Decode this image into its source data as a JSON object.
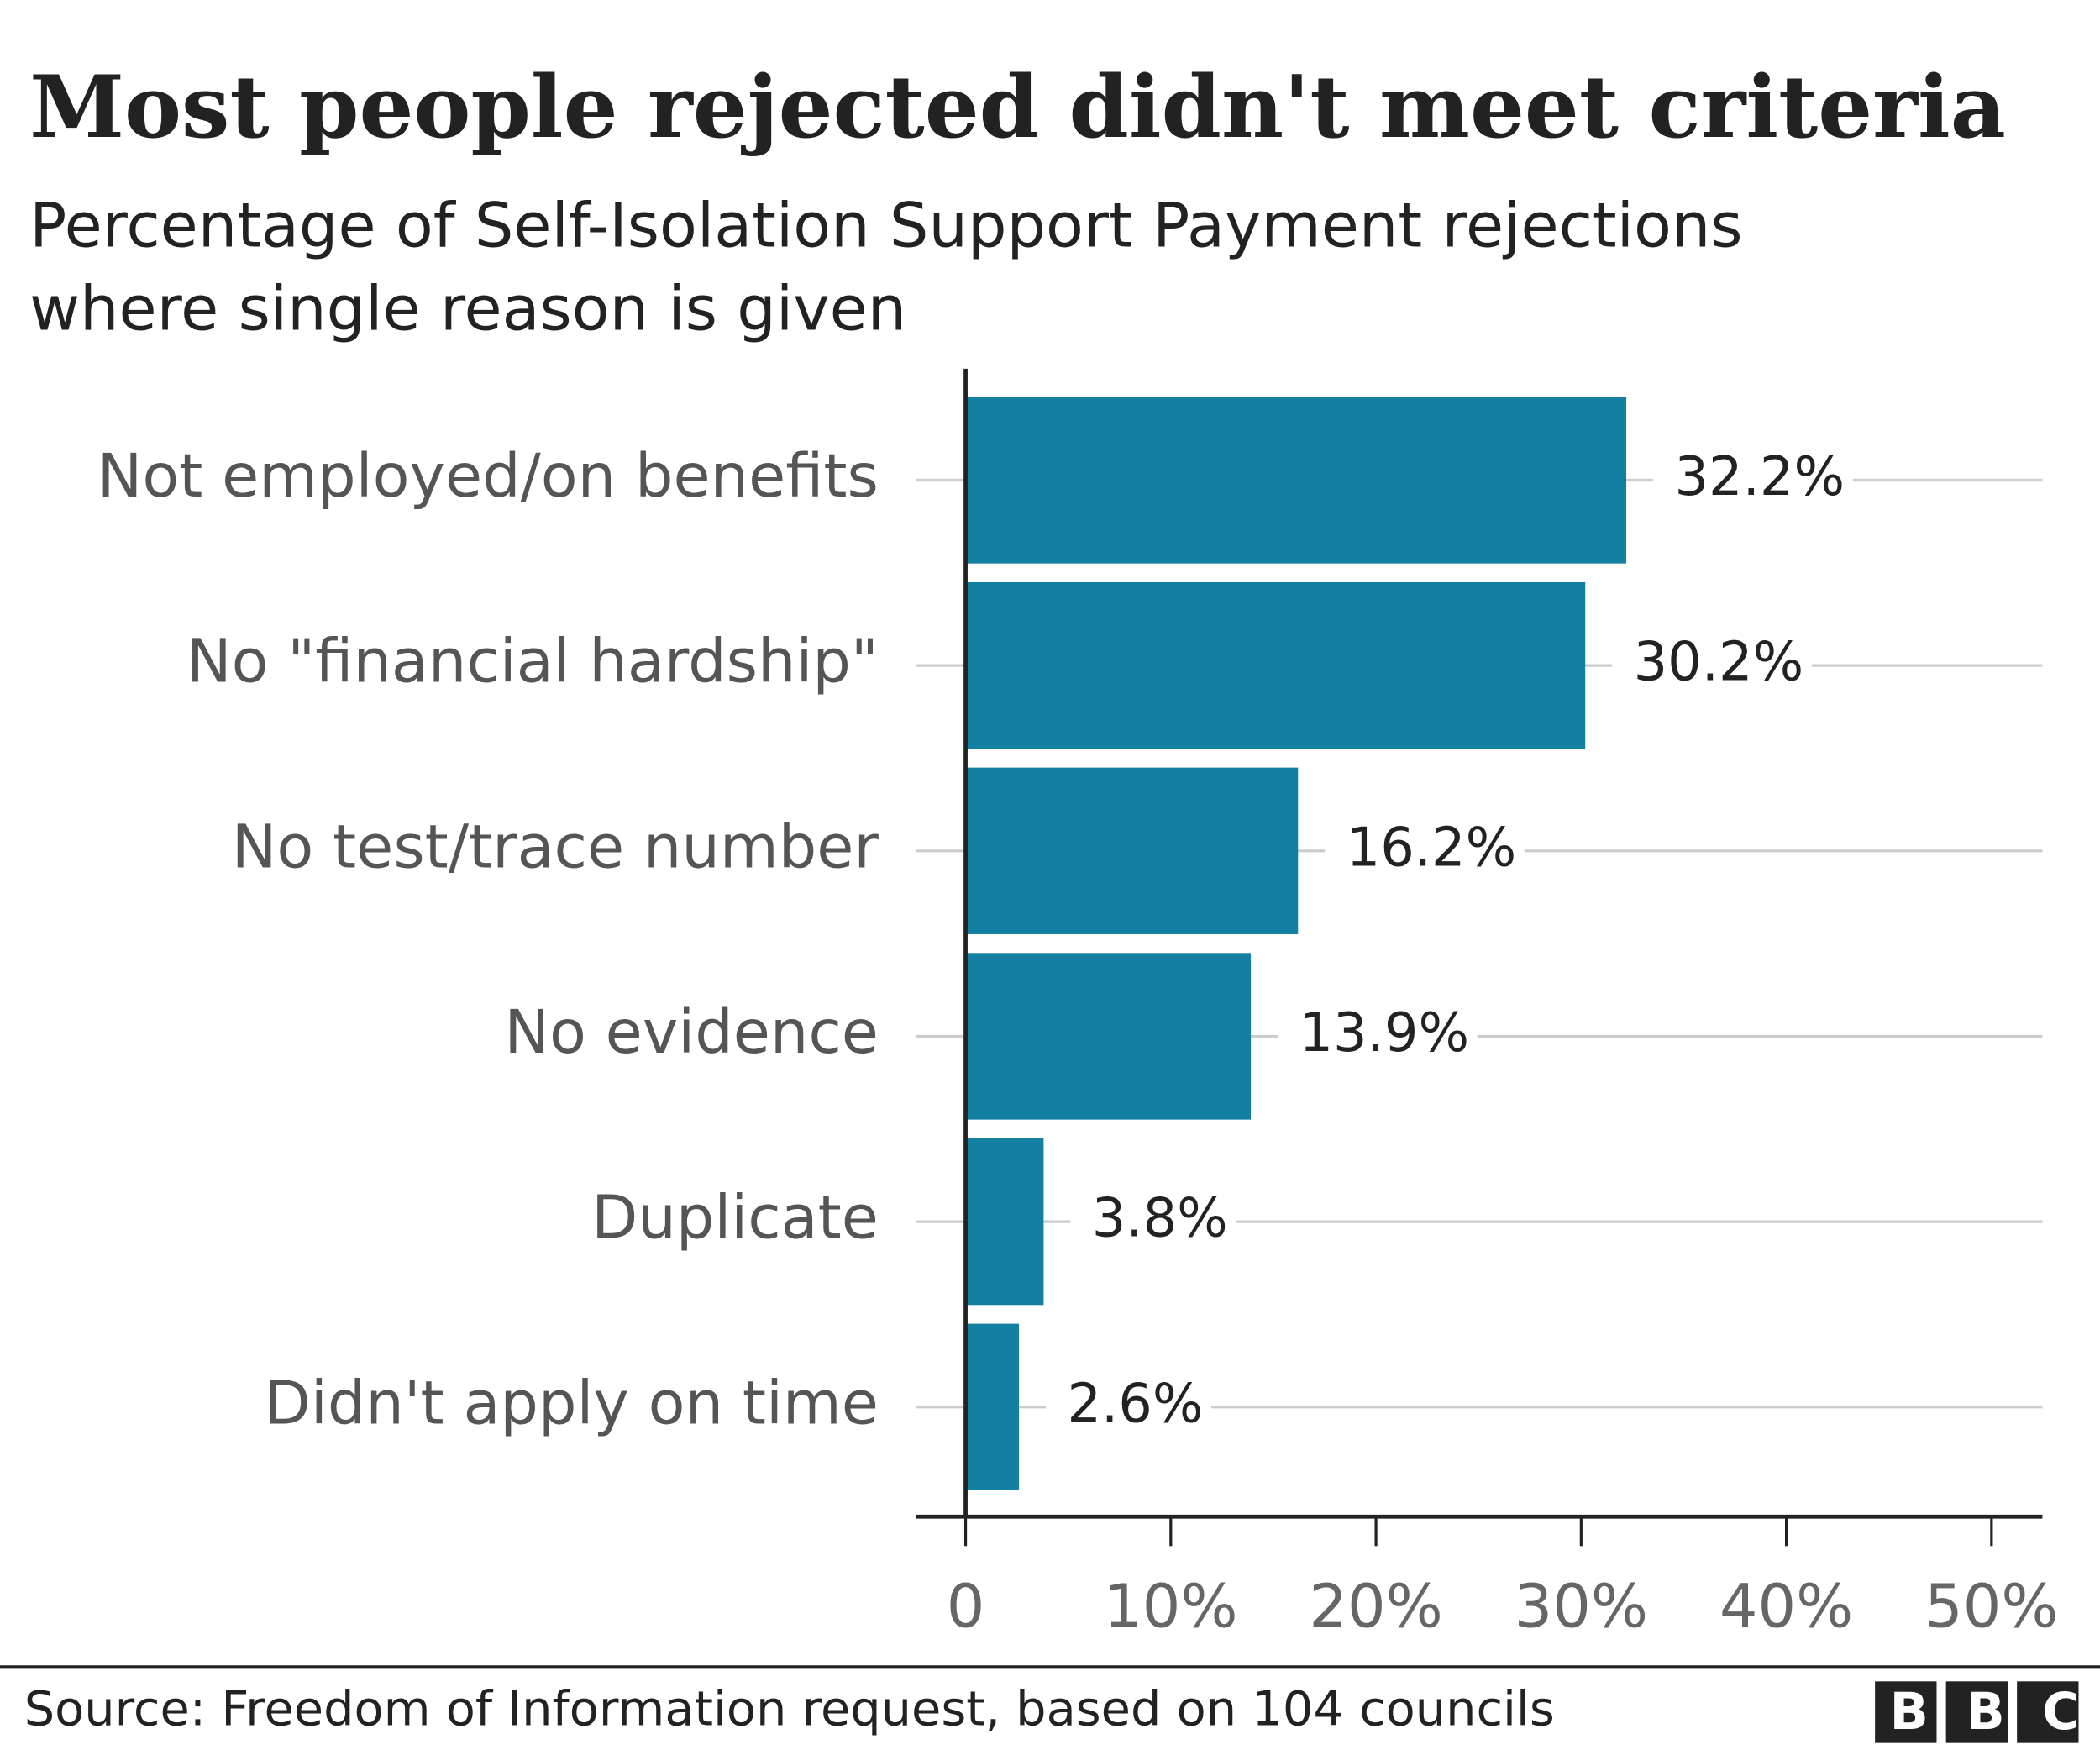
{
  "chart_data": {
    "type": "barh",
    "title": "Most people rejected didn't meet criteria",
    "subtitle": [
      "Percentage of Self-Isolation Support Payment rejections",
      "where single reason is given"
    ],
    "categories": [
      "Not employed/on benefits",
      "No \"financial hardship\"",
      "No test/trace number",
      "No evidence",
      "Duplicate",
      "Didn't apply on time"
    ],
    "values": [
      32.2,
      30.2,
      16.2,
      13.9,
      3.8,
      2.6
    ],
    "value_labels": [
      "32.2%",
      "30.2%",
      "16.2%",
      "13.9%",
      "3.8%",
      "2.6%"
    ],
    "color": "#1380a1",
    "xlim": [
      0,
      50
    ],
    "xticks": [
      0,
      {
        "value": 10,
        "label": "10%"
      },
      {
        "value": 20,
        "label": "20%"
      },
      {
        "value": 30,
        "label": "30%"
      },
      {
        "value": 40,
        "label": "40%"
      },
      {
        "value": 50,
        "label": "50%"
      }
    ],
    "source": "Source: Freedom of Information request, based on 104 councils",
    "logo": "BBC"
  }
}
